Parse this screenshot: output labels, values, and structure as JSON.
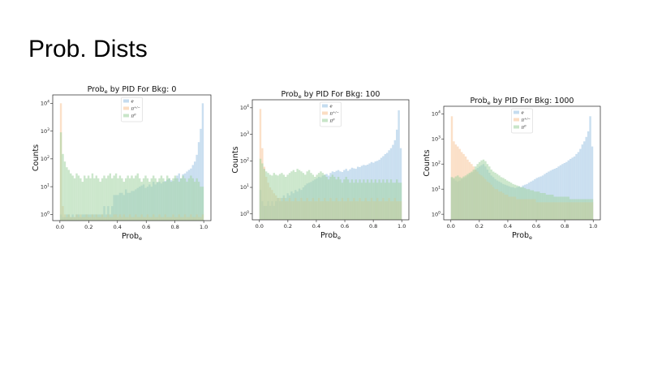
{
  "slide": {
    "title": "Prob. Dists"
  },
  "colors": {
    "e": "#9ec5e4",
    "pi_pm": "#f8c79b",
    "pi0": "#a3d3a3"
  },
  "chart_data": [
    {
      "type": "histogram",
      "title_prefix": "Prob",
      "title_sub": "e",
      "title_suffix": " by PID For Bkg: 0",
      "xlabel": "Prob",
      "xlabel_sub": "e",
      "ylabel": "Counts",
      "yscale": "log",
      "xlim": [
        -0.05,
        1.05
      ],
      "ylim": [
        0.6,
        20000
      ],
      "xticks": [
        "0.0",
        "0.2",
        "0.4",
        "0.6",
        "0.8",
        "1.0"
      ],
      "yticks": [
        {
          "base": "10",
          "exp": "0"
        },
        {
          "base": "10",
          "exp": "1"
        },
        {
          "base": "10",
          "exp": "2"
        },
        {
          "base": "10",
          "exp": "3"
        },
        {
          "base": "10",
          "exp": "4"
        }
      ],
      "legend": [
        "e",
        "π+/−",
        "π0"
      ],
      "series": [
        {
          "name": "e",
          "values": [
            1,
            0.8,
            0.8,
            1,
            1,
            0.8,
            1,
            0.8,
            1,
            1,
            0.8,
            1,
            1,
            1,
            1,
            1,
            1,
            1,
            1,
            1,
            1,
            1,
            2,
            1,
            2,
            1,
            2,
            5,
            5,
            5,
            6,
            6,
            5,
            8,
            6,
            6,
            7,
            7,
            8,
            9,
            10,
            11,
            12,
            9,
            10,
            12,
            10,
            15,
            12,
            14,
            15,
            13,
            15,
            16,
            18,
            20,
            17,
            16,
            20,
            25,
            30,
            20,
            28,
            30,
            35,
            40,
            45,
            60,
            80,
            140,
            400,
            1200,
            10000
          ]
        },
        {
          "name": "π+/−",
          "values": [
            10000,
            2,
            1,
            0.8,
            1,
            0.8,
            0.8,
            0.8,
            1,
            0.8,
            1,
            0.8,
            0.8,
            1,
            0.8,
            0.8,
            1,
            0.8,
            1,
            0.8,
            0.8,
            1,
            0.8,
            0.8,
            1,
            0.8,
            0.8,
            1,
            1,
            0.8,
            1,
            0.8,
            1,
            0.8,
            0.8,
            1,
            0.8,
            0.8,
            1,
            0.8,
            0.8,
            1,
            0.8,
            0.8,
            1,
            0.8,
            0.8,
            1,
            0.8,
            0.8,
            1,
            0.8,
            0.8,
            1,
            0.8,
            0.8,
            0.8,
            1,
            0.8,
            0.8,
            1,
            0.8,
            0.8,
            1,
            0.8,
            0.8,
            1,
            0.8,
            0.8,
            1,
            0.8,
            0.8,
            1
          ]
        },
        {
          "name": "π0",
          "values": [
            900,
            150,
            80,
            50,
            40,
            30,
            25,
            20,
            30,
            25,
            20,
            15,
            25,
            20,
            25,
            20,
            30,
            20,
            25,
            20,
            15,
            20,
            25,
            20,
            25,
            30,
            20,
            25,
            30,
            20,
            25,
            20,
            15,
            20,
            25,
            20,
            25,
            20,
            25,
            30,
            20,
            15,
            20,
            25,
            20,
            15,
            20,
            25,
            20,
            15,
            20,
            25,
            20,
            15,
            25,
            20,
            15,
            20,
            25,
            20,
            15,
            20,
            25,
            20,
            15,
            20,
            25,
            20,
            15,
            20,
            15,
            10,
            10
          ]
        }
      ]
    },
    {
      "type": "histogram",
      "title_prefix": "Prob",
      "title_sub": "e",
      "title_suffix": " by PID For Bkg: 100",
      "xlabel": "Prob",
      "xlabel_sub": "e",
      "ylabel": "Counts",
      "yscale": "log",
      "xlim": [
        -0.05,
        1.05
      ],
      "ylim": [
        0.6,
        20000
      ],
      "xticks": [
        "0.0",
        "0.2",
        "0.4",
        "0.6",
        "0.8",
        "1.0"
      ],
      "yticks": [
        {
          "base": "10",
          "exp": "0"
        },
        {
          "base": "10",
          "exp": "1"
        },
        {
          "base": "10",
          "exp": "2"
        },
        {
          "base": "10",
          "exp": "3"
        },
        {
          "base": "10",
          "exp": "4"
        }
      ],
      "legend": [
        "e",
        "π+/−",
        "π0"
      ],
      "series": [
        {
          "name": "e",
          "values": [
            8,
            3,
            2,
            2,
            3,
            2,
            3,
            2,
            3,
            4,
            3,
            4,
            5,
            4,
            6,
            5,
            7,
            6,
            8,
            7,
            9,
            8,
            10,
            12,
            14,
            15,
            16,
            18,
            20,
            22,
            25,
            24,
            28,
            30,
            32,
            28,
            35,
            40,
            38,
            42,
            45,
            40,
            38,
            45,
            50,
            42,
            48,
            55,
            52,
            50,
            60,
            58,
            65,
            70,
            68,
            72,
            80,
            90,
            85,
            95,
            100,
            110,
            130,
            150,
            180,
            200,
            250,
            300,
            400,
            600,
            1500,
            8000,
            300
          ]
        },
        {
          "name": "π+/−",
          "values": [
            9000,
            300,
            60,
            25,
            15,
            10,
            8,
            6,
            5,
            4,
            4,
            3,
            4,
            3,
            3,
            4,
            3,
            3,
            4,
            3,
            3,
            4,
            3,
            3,
            4,
            3,
            3,
            4,
            3,
            3,
            4,
            3,
            3,
            4,
            3,
            3,
            4,
            3,
            3,
            4,
            3,
            3,
            4,
            3,
            3,
            4,
            3,
            3,
            4,
            3,
            3,
            4,
            3,
            3,
            4,
            3,
            3,
            4,
            3,
            3,
            4,
            3,
            3,
            4,
            3,
            3,
            4,
            3,
            3,
            4,
            3,
            3,
            3
          ]
        },
        {
          "name": "π0",
          "values": [
            120,
            80,
            50,
            40,
            35,
            30,
            28,
            35,
            30,
            28,
            32,
            35,
            30,
            25,
            30,
            35,
            40,
            45,
            38,
            50,
            45,
            40,
            35,
            30,
            40,
            45,
            35,
            30,
            25,
            30,
            35,
            40,
            35,
            30,
            25,
            20,
            25,
            30,
            25,
            20,
            25,
            20,
            15,
            20,
            25,
            20,
            15,
            20,
            15,
            20,
            15,
            20,
            15,
            20,
            15,
            20,
            15,
            20,
            15,
            20,
            15,
            20,
            15,
            20,
            15,
            20,
            15,
            20,
            15,
            15,
            20,
            15,
            15
          ]
        }
      ]
    },
    {
      "type": "histogram",
      "title_prefix": "Prob",
      "title_sub": "e",
      "title_suffix": " by PID For Bkg: 1000",
      "xlabel": "Prob",
      "xlabel_sub": "e",
      "ylabel": "Counts",
      "yscale": "log",
      "xlim": [
        -0.05,
        1.05
      ],
      "ylim": [
        0.6,
        20000
      ],
      "xticks": [
        "0.0",
        "0.2",
        "0.4",
        "0.6",
        "0.8",
        "1.0"
      ],
      "yticks": [
        {
          "base": "10",
          "exp": "0"
        },
        {
          "base": "10",
          "exp": "1"
        },
        {
          "base": "10",
          "exp": "2"
        },
        {
          "base": "10",
          "exp": "3"
        },
        {
          "base": "10",
          "exp": "4"
        }
      ],
      "legend": [
        "e",
        "π+/−",
        "π0"
      ],
      "series": [
        {
          "name": "e",
          "values": [
            30,
            25,
            22,
            20,
            22,
            25,
            28,
            30,
            35,
            40,
            45,
            50,
            60,
            70,
            80,
            90,
            100,
            80,
            60,
            45,
            35,
            30,
            25,
            22,
            20,
            18,
            16,
            15,
            14,
            13,
            12,
            12,
            11,
            12,
            13,
            12,
            14,
            15,
            16,
            18,
            20,
            22,
            25,
            28,
            30,
            32,
            35,
            40,
            45,
            50,
            55,
            60,
            65,
            70,
            80,
            90,
            100,
            110,
            120,
            140,
            160,
            180,
            200,
            250,
            300,
            400,
            600,
            800,
            1200,
            2000,
            8000,
            500
          ]
        },
        {
          "name": "π+/−",
          "values": [
            8000,
            800,
            600,
            500,
            400,
            300,
            250,
            200,
            150,
            120,
            100,
            80,
            60,
            50,
            40,
            35,
            30,
            25,
            20,
            18,
            15,
            12,
            10,
            10,
            8,
            8,
            7,
            6,
            6,
            5,
            5,
            5,
            5,
            4,
            4,
            4,
            4,
            4,
            4,
            4,
            4,
            4,
            4,
            3,
            3,
            3,
            3,
            3,
            3,
            3,
            3,
            3,
            3,
            3,
            3,
            3,
            3,
            3,
            3,
            3,
            3,
            3,
            3,
            3,
            3,
            3,
            3,
            3,
            3,
            3,
            3,
            3
          ]
        },
        {
          "name": "π0",
          "values": [
            30,
            28,
            32,
            35,
            30,
            28,
            32,
            35,
            40,
            45,
            50,
            60,
            80,
            100,
            120,
            140,
            150,
            130,
            100,
            80,
            60,
            50,
            45,
            40,
            35,
            30,
            28,
            25,
            22,
            20,
            18,
            16,
            15,
            14,
            13,
            12,
            12,
            11,
            10,
            10,
            9,
            9,
            8,
            8,
            8,
            7,
            7,
            7,
            6,
            6,
            6,
            6,
            5,
            5,
            5,
            5,
            5,
            5,
            5,
            5,
            4,
            4,
            4,
            4,
            4,
            4,
            4,
            4,
            4,
            4,
            4,
            4
          ]
        }
      ]
    }
  ]
}
